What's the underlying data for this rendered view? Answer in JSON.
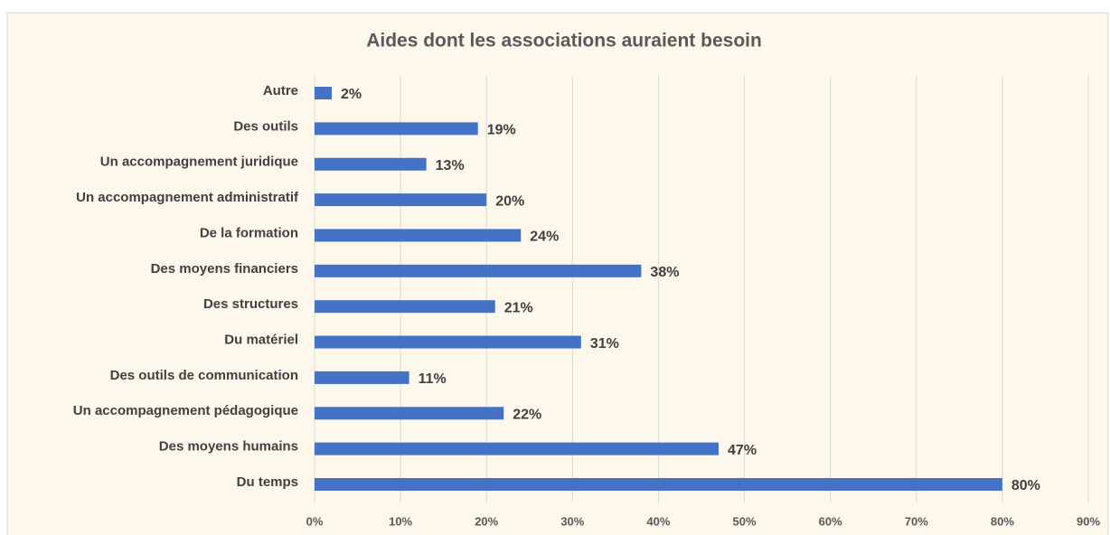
{
  "chart_data": {
    "type": "bar",
    "orientation": "horizontal",
    "title": "Aides dont les associations auraient besoin",
    "categories": [
      "Autre",
      "Des outils",
      "Un accompagnement juridique",
      "Un accompagnement administratif",
      "De la formation",
      "Des moyens financiers",
      "Des structures",
      "Du matériel",
      "Des outils de communication",
      "Un accompagnement pédagogique",
      "Des moyens humains",
      "Du temps"
    ],
    "values": [
      2,
      19,
      13,
      20,
      24,
      38,
      21,
      31,
      11,
      22,
      47,
      80
    ],
    "value_labels": [
      "2%",
      "19%",
      "13%",
      "20%",
      "24%",
      "38%",
      "21%",
      "31%",
      "11%",
      "22%",
      "47%",
      "80%"
    ],
    "color": "#4472c4",
    "xlim": [
      0,
      90
    ],
    "xticks": [
      {
        "value": 0,
        "label": "0%"
      },
      {
        "value": 10,
        "label": "10%"
      },
      {
        "value": 20,
        "label": "20%"
      },
      {
        "value": 30,
        "label": "30%"
      },
      {
        "value": 40,
        "label": "40%"
      },
      {
        "value": 50,
        "label": "50%"
      },
      {
        "value": 60,
        "label": "60%"
      },
      {
        "value": 70,
        "label": "70%"
      },
      {
        "value": 80,
        "label": "80%"
      },
      {
        "value": 90,
        "label": "90%"
      }
    ],
    "grid": true
  }
}
